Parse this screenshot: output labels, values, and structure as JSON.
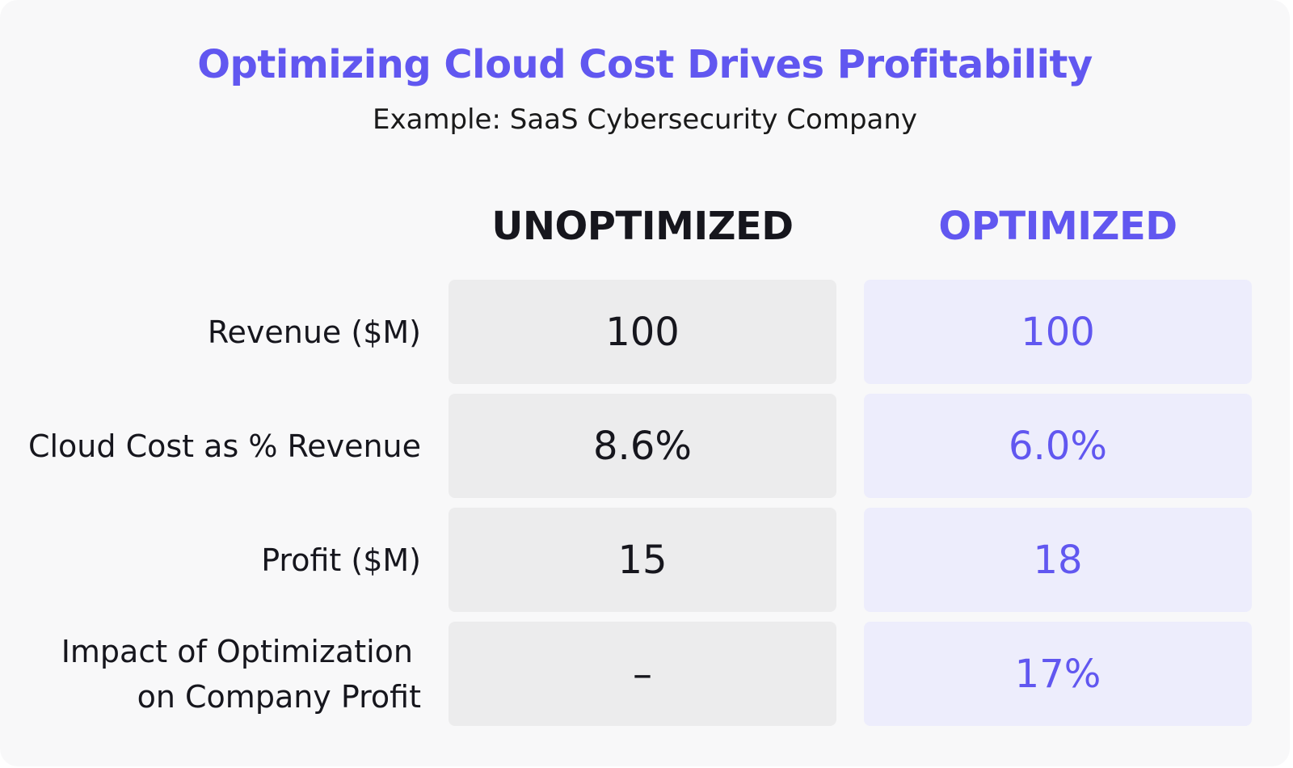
{
  "title": "Optimizing Cloud Cost Drives Profitability",
  "subtitle": "Example: SaaS Cybersecurity Company",
  "colors": {
    "accent": "#6157f0",
    "text": "#16161d",
    "unoptimized_cell": "#ececed",
    "optimized_cell": "#ededfc",
    "background": "#f8f8f9"
  },
  "chart_data": {
    "type": "table",
    "title": "Optimizing Cloud Cost Drives Profitability",
    "subtitle": "Example: SaaS Cybersecurity Company",
    "columns": [
      "UNOPTIMIZED",
      "OPTIMIZED"
    ],
    "rows": [
      {
        "label": "Revenue ($M)",
        "label_lines": [
          "Revenue ($M)"
        ],
        "unoptimized": "100",
        "optimized": "100"
      },
      {
        "label": "Cloud Cost as % Revenue",
        "label_lines": [
          "Cloud Cost as % Revenue"
        ],
        "unoptimized": "8.6%",
        "optimized": "6.0%"
      },
      {
        "label": "Profit ($M)",
        "label_lines": [
          "Profit ($M)"
        ],
        "unoptimized": "15",
        "optimized": "18"
      },
      {
        "label": "Impact of Optimization on Company Profit",
        "label_lines": [
          "Impact of Optimization",
          "on Company Profit"
        ],
        "unoptimized": "–",
        "optimized": "17%"
      }
    ]
  }
}
